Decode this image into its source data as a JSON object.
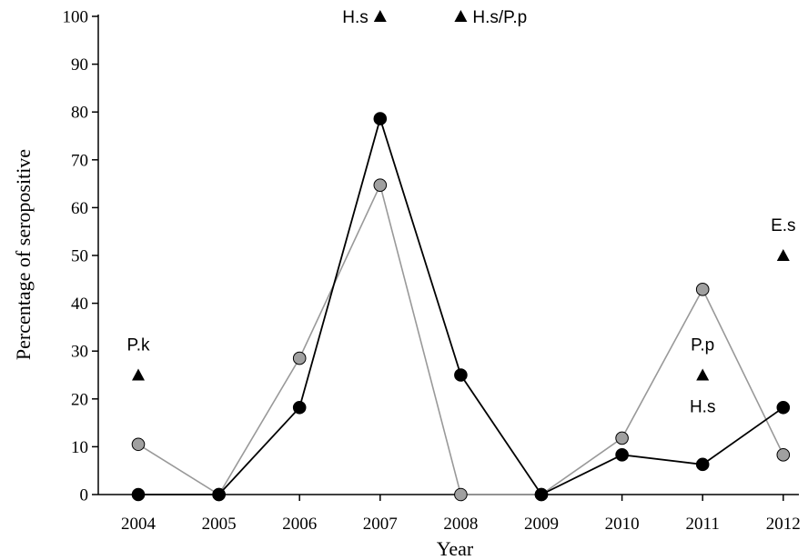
{
  "chart_data": {
    "type": "line",
    "title": "",
    "xlabel": "Year",
    "ylabel": "Percentage of seropositive",
    "categories": [
      "2004",
      "2005",
      "2006",
      "2007",
      "2008",
      "2009",
      "2010",
      "2011",
      "2012"
    ],
    "ylim": [
      0,
      100
    ],
    "yticks": [
      0,
      10,
      20,
      30,
      40,
      50,
      60,
      70,
      80,
      90,
      100
    ],
    "grid": false,
    "series": [
      {
        "color": "#999999",
        "marker_fill": "#a0a0a0",
        "values": [
          10.5,
          0,
          28.5,
          64.7,
          0,
          0,
          11.8,
          42.9,
          8.3
        ]
      },
      {
        "color": "#000000",
        "marker_fill": "#000000",
        "values": [
          0,
          0,
          18.2,
          78.6,
          25,
          0,
          8.3,
          6.3,
          18.2
        ]
      }
    ],
    "triangles": [
      {
        "x": "2004",
        "y": 25
      },
      {
        "x": "2007",
        "y": 100
      },
      {
        "x": "2008",
        "y": 100
      },
      {
        "x": "2011",
        "y": 25
      },
      {
        "x": "2012",
        "y": 50
      }
    ],
    "annotations": [
      {
        "text": "P.k",
        "x": "2004",
        "y": 31.5,
        "anchor": "middle"
      },
      {
        "text": "H.s",
        "x": "2007",
        "y": 100,
        "anchor": "end"
      },
      {
        "text": "H.s/P.p",
        "x": "2008",
        "y": 100,
        "anchor": "start"
      },
      {
        "text": "P.p",
        "x": "2011",
        "y": 31.5,
        "anchor": "middle"
      },
      {
        "text": "H.s",
        "x": "2011",
        "y": 18.5,
        "anchor": "middle"
      },
      {
        "text": "E.s",
        "x": "2012",
        "y": 56.5,
        "anchor": "middle"
      }
    ]
  }
}
